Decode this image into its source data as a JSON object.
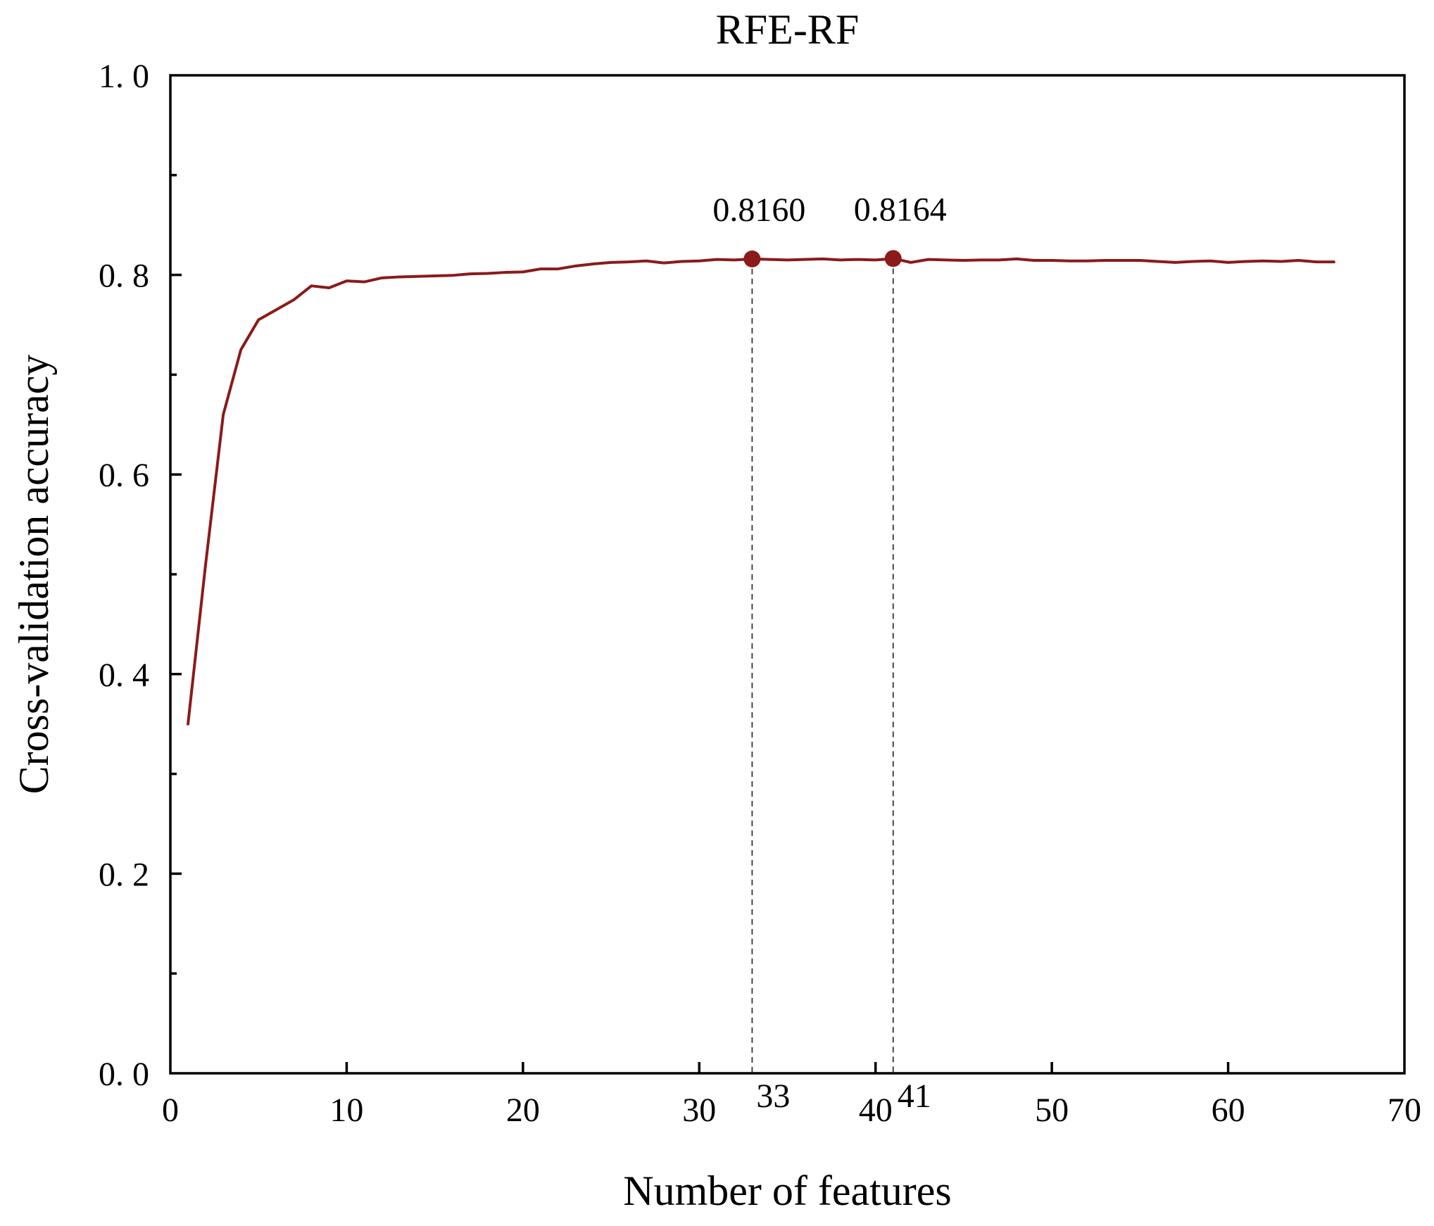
{
  "chart_data": {
    "type": "line",
    "title": "RFE-RF",
    "xlabel": "Number of features",
    "ylabel": "Cross-validation accuracy",
    "xlim": [
      0,
      70
    ],
    "ylim": [
      0,
      1
    ],
    "x_ticks": [
      0,
      10,
      20,
      30,
      40,
      50,
      60,
      70
    ],
    "x_tick_labels": [
      "0",
      "10",
      "20",
      "30",
      "40",
      "50",
      "60",
      "70"
    ],
    "y_ticks": [
      0,
      0.2,
      0.4,
      0.6,
      0.8,
      1.0
    ],
    "y_tick_labels": [
      "0. 0",
      "0. 2",
      "0. 4",
      "0. 6",
      "0. 8",
      "1. 0"
    ],
    "y_minor_ticks": [
      0.1,
      0.3,
      0.5,
      0.7,
      0.9
    ],
    "grid": false,
    "line_color": "#8B1A1A",
    "series": [
      {
        "x": [
          1,
          2,
          3,
          4,
          5,
          6,
          7,
          8,
          9,
          10,
          11,
          12,
          13,
          14,
          15,
          16,
          17,
          18,
          19,
          20,
          21,
          22,
          23,
          24,
          25,
          26,
          27,
          28,
          29,
          30,
          31,
          32,
          33,
          34,
          35,
          36,
          37,
          38,
          39,
          40,
          41,
          42,
          43,
          44,
          45,
          46,
          47,
          48,
          49,
          50,
          51,
          52,
          53,
          54,
          55,
          56,
          57,
          58,
          59,
          60,
          61,
          62,
          63,
          64,
          65,
          66
        ],
        "values": [
          0.35,
          0.51,
          0.66,
          0.725,
          0.755,
          0.765,
          0.775,
          0.789,
          0.787,
          0.794,
          0.793,
          0.797,
          0.798,
          0.7985,
          0.799,
          0.7995,
          0.801,
          0.8015,
          0.8025,
          0.803,
          0.806,
          0.806,
          0.809,
          0.811,
          0.8125,
          0.813,
          0.814,
          0.812,
          0.8135,
          0.814,
          0.8155,
          0.815,
          0.816,
          0.8155,
          0.815,
          0.8155,
          0.816,
          0.815,
          0.8155,
          0.815,
          0.8164,
          0.8125,
          0.8155,
          0.815,
          0.8145,
          0.815,
          0.815,
          0.816,
          0.8145,
          0.8145,
          0.814,
          0.814,
          0.8145,
          0.8145,
          0.8145,
          0.8135,
          0.8125,
          0.8135,
          0.814,
          0.8125,
          0.8135,
          0.814,
          0.8135,
          0.8145,
          0.813,
          0.813
        ]
      }
    ],
    "annotations": [
      {
        "x": 33,
        "y": 0.816,
        "label": "0.8160",
        "x_label": "33"
      },
      {
        "x": 41,
        "y": 0.8164,
        "label": "0.8164",
        "x_label": "41"
      }
    ]
  }
}
